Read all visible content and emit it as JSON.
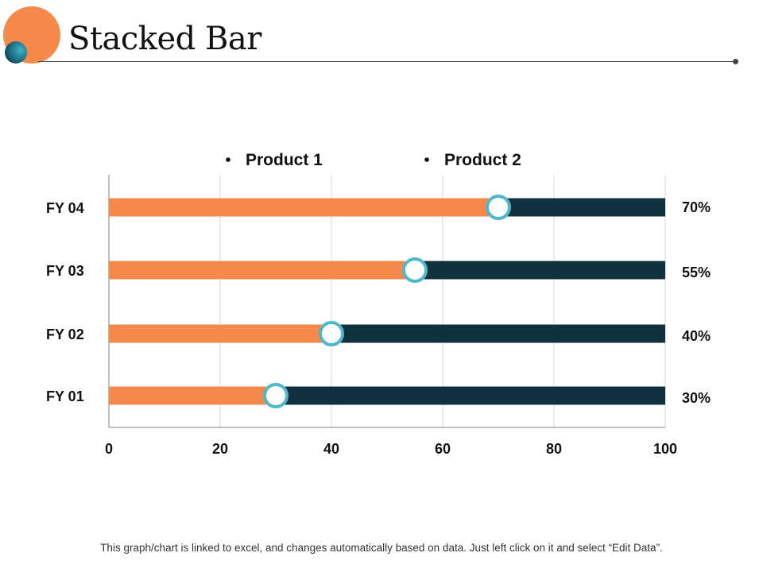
{
  "slide": {
    "title": "Stacked Bar",
    "footer": "This graph/chart is linked to excel, and changes automatically  based on data. Just left click on it and select “Edit Data”."
  },
  "colors": {
    "accent": "#F5894B",
    "dark": "#12313F",
    "marker_ring": "#4FB8CC",
    "deco_small_a": "#0E4A5C",
    "deco_small_b": "#3CB3C9",
    "grid": "#D9D9D9",
    "axis": "#7F7F7F",
    "text": "#111111"
  },
  "chart_data": {
    "type": "bar",
    "orientation": "horizontal",
    "stacked": true,
    "title": "Stacked Bar",
    "categories": [
      "FY  01",
      "FY  02",
      "FY  03",
      "FY  04"
    ],
    "series": [
      {
        "name": "Product 1",
        "values": [
          30,
          40,
          55,
          70
        ]
      },
      {
        "name": "Product 2",
        "values": [
          70,
          60,
          45,
          30
        ]
      }
    ],
    "data_labels": [
      "30%",
      "40%",
      "55%",
      "70%"
    ],
    "x_ticks": [
      "0",
      "20",
      "40",
      "60",
      "80",
      "100"
    ],
    "xlim": [
      0,
      100
    ],
    "legend": [
      "Product 1",
      "Product 2"
    ],
    "legend_position": "top",
    "grid": true
  }
}
